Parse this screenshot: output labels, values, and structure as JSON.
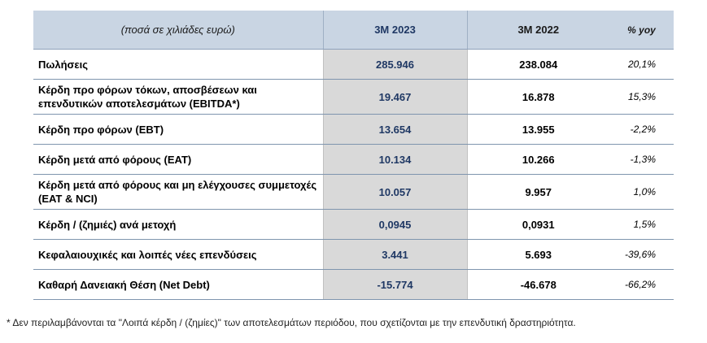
{
  "table": {
    "header": {
      "label": "(ποσά σε χιλιάδες ευρώ)",
      "col_2023": "3M 2023",
      "col_2022": "3M 2022",
      "col_yoy": "% yoy"
    },
    "rows": [
      {
        "label": "Πωλήσεις",
        "v2023": "285.946",
        "v2022": "238.084",
        "yoy": "20,1%"
      },
      {
        "label": "Κέρδη προ φόρων τόκων, αποσβέσεων και επενδυτικών αποτελεσμάτων (EBITDA*)",
        "v2023": "19.467",
        "v2022": "16.878",
        "yoy": "15,3%"
      },
      {
        "label": "Κέρδη προ φόρων (EBT)",
        "v2023": "13.654",
        "v2022": "13.955",
        "yoy": "-2,2%"
      },
      {
        "label": "Κέρδη μετά από φόρους (EAT)",
        "v2023": "10.134",
        "v2022": "10.266",
        "yoy": "-1,3%"
      },
      {
        "label": "Κέρδη μετά από φόρους και μη ελέγχουσες συμμετοχές (EAT & NCI)",
        "v2023": "10.057",
        "v2022": "9.957",
        "yoy": "1,0%"
      },
      {
        "label": "Κέρδη / (ζημιές) ανά μετοχή",
        "v2023": "0,0945",
        "v2022": "0,0931",
        "yoy": "1,5%"
      },
      {
        "label": "Κεφαλαιουχικές και λοιπές νέες επενδύσεις",
        "v2023": "3.441",
        "v2022": "5.693",
        "yoy": "-39,6%"
      },
      {
        "label": "Καθαρή Δανειακή Θέση (Net Debt)",
        "v2023": "-15.774",
        "v2022": "-46.678",
        "yoy": "-66,2%"
      }
    ]
  },
  "footnote": "* Δεν περιλαμβάνονται τα \"Λοιπά κέρδη / (ζημίες)\" των αποτελεσμάτων περιόδου, που σχετίζονται με την επενδυτική δραστηριότητα."
}
